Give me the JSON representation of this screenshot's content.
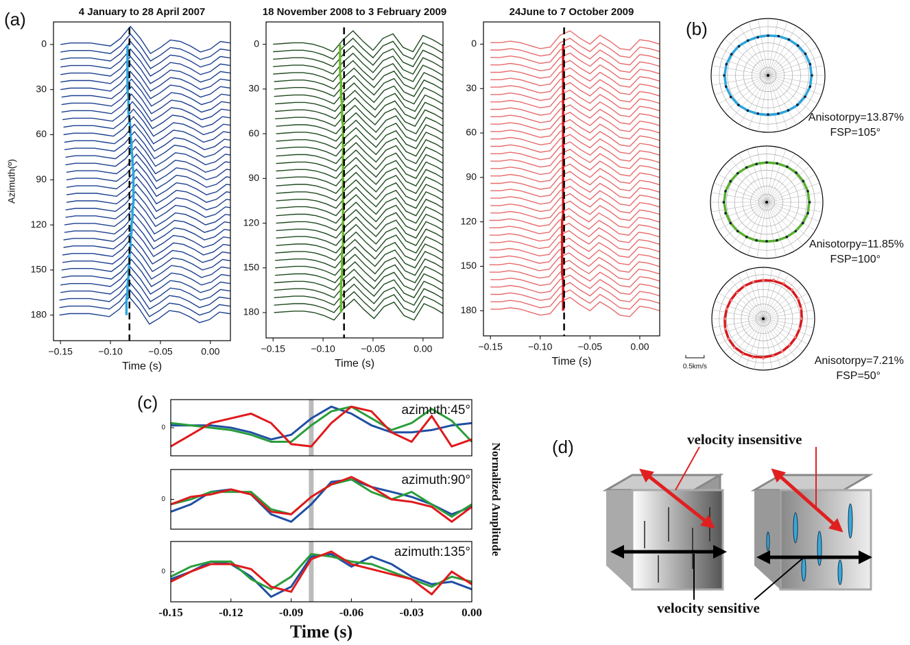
{
  "panel_labels": [
    "(a)",
    "(b)",
    "(c)",
    "(d)"
  ],
  "chart_data": [
    {
      "type": "waveform",
      "title": "4 January to 28 April 2007",
      "xlabel": "Time (s)",
      "ylabel": "Azimuth(º)",
      "color": "#1a3f8f",
      "pick_color": "#2ba6de",
      "xlim": [
        -0.157,
        0.02
      ],
      "ylim": [
        -15,
        197
      ],
      "xticks": [
        {
          "value": -0.15,
          "label": "−0.15"
        },
        {
          "value": -0.1,
          "label": "−0.10"
        },
        {
          "value": -0.05,
          "label": "−0.05"
        },
        {
          "value": 0,
          "label": "0.00"
        }
      ],
      "yticks": [
        0,
        30,
        60,
        90,
        120,
        150,
        180
      ],
      "x": [
        -0.15,
        -0.14,
        -0.13,
        -0.12,
        -0.11,
        -0.1,
        -0.09,
        -0.08,
        -0.07,
        -0.06,
        -0.05,
        -0.04,
        -0.03,
        -0.02,
        -0.01,
        0,
        0.01,
        0.02,
        0.03
      ],
      "values": [
        0,
        1,
        1,
        1,
        0,
        -1,
        4,
        12,
        4,
        -6,
        -2,
        3,
        2,
        -1,
        -5,
        -3,
        2,
        1,
        0
      ],
      "azimuths": [
        0,
        5,
        10,
        15,
        20,
        25,
        30,
        35,
        40,
        45,
        50,
        55,
        60,
        65,
        70,
        75,
        80,
        85,
        90,
        95,
        100,
        105,
        110,
        115,
        120,
        125,
        130,
        135,
        140,
        145,
        150,
        155,
        160,
        165,
        170,
        175,
        180
      ],
      "pick_times": [
        -0.083,
        -0.083,
        -0.083,
        -0.083,
        -0.083,
        -0.083,
        -0.083,
        -0.082,
        -0.082,
        -0.082,
        -0.081,
        -0.08,
        -0.08,
        -0.079,
        -0.079,
        -0.078,
        -0.078,
        -0.077,
        -0.077,
        -0.077,
        -0.077,
        -0.077,
        -0.078,
        -0.078,
        -0.079,
        -0.079,
        -0.08,
        -0.08,
        -0.081,
        -0.081,
        -0.082,
        -0.082,
        -0.083,
        -0.083,
        -0.084,
        -0.084,
        -0.084
      ],
      "reference_time": -0.081
    },
    {
      "type": "waveform",
      "title": "18 November 2008 to 3 February 2009",
      "xlabel": "Time (s)",
      "color": "#1f4a1f",
      "pick_color": "#6ab82d",
      "xlim": [
        -0.157,
        0.02
      ],
      "ylim": [
        -15,
        197
      ],
      "xticks": [
        {
          "value": -0.15,
          "label": "−0.15"
        },
        {
          "value": -0.1,
          "label": "−0.10"
        },
        {
          "value": -0.05,
          "label": "−0.05"
        },
        {
          "value": 0,
          "label": "0.00"
        }
      ],
      "yticks": [
        0,
        30,
        60,
        90,
        120,
        150,
        180
      ],
      "x": [
        -0.15,
        -0.14,
        -0.13,
        -0.12,
        -0.11,
        -0.1,
        -0.09,
        -0.08,
        -0.07,
        -0.06,
        -0.05,
        -0.04,
        -0.03,
        -0.02,
        -0.01,
        0,
        0.01,
        0.02,
        0.03
      ],
      "values": [
        0,
        0.5,
        1,
        1,
        0,
        -2,
        -5,
        3,
        9,
        2,
        -4,
        4,
        7,
        -2,
        -5,
        6,
        3,
        -1,
        0
      ],
      "azimuths": [
        0,
        5,
        10,
        15,
        20,
        25,
        30,
        35,
        40,
        45,
        50,
        55,
        60,
        65,
        70,
        75,
        80,
        85,
        90,
        95,
        100,
        105,
        110,
        115,
        120,
        125,
        130,
        135,
        140,
        145,
        150,
        155,
        160,
        165,
        170,
        175,
        180
      ],
      "pick_times": [
        -0.083,
        -0.083,
        -0.083,
        -0.083,
        -0.083,
        -0.082,
        -0.082,
        -0.082,
        -0.081,
        -0.081,
        -0.081,
        -0.08,
        -0.08,
        -0.08,
        -0.08,
        -0.08,
        -0.08,
        -0.08,
        -0.08,
        -0.08,
        -0.08,
        -0.08,
        -0.08,
        -0.08,
        -0.08,
        -0.08,
        -0.08,
        -0.08,
        -0.081,
        -0.081,
        -0.081,
        -0.081,
        -0.082,
        -0.082,
        -0.082,
        -0.082,
        -0.082
      ],
      "reference_time": -0.079
    },
    {
      "type": "waveform",
      "title": "24June to 7 October 2009",
      "xlabel": "Time (s)",
      "color": "#e86a6a",
      "pick_color": "#d7191c",
      "xlim": [
        -0.157,
        0.02
      ],
      "ylim": [
        -15,
        197
      ],
      "xticks": [
        {
          "value": -0.15,
          "label": "−0.15"
        },
        {
          "value": -0.1,
          "label": "−0.10"
        },
        {
          "value": -0.05,
          "label": "−0.05"
        },
        {
          "value": 0,
          "label": "0.00"
        }
      ],
      "yticks": [
        0,
        30,
        60,
        90,
        120,
        150,
        180
      ],
      "x": [
        -0.15,
        -0.14,
        -0.13,
        -0.12,
        -0.11,
        -0.1,
        -0.09,
        -0.08,
        -0.07,
        -0.06,
        -0.05,
        -0.04,
        -0.03,
        -0.02,
        -0.01,
        0,
        0.01,
        0.02,
        0.03
      ],
      "values": [
        1,
        1,
        2,
        1,
        -1,
        -3,
        -2,
        6,
        9,
        4,
        0,
        6,
        2,
        -3,
        -4,
        3,
        2,
        0,
        1
      ],
      "azimuths": [
        0,
        5,
        10,
        15,
        20,
        25,
        30,
        35,
        40,
        45,
        50,
        55,
        60,
        65,
        70,
        75,
        80,
        85,
        90,
        95,
        100,
        105,
        110,
        115,
        120,
        125,
        130,
        135,
        140,
        145,
        150,
        155,
        160,
        165,
        170,
        175,
        180
      ],
      "pick_times": [
        -0.077,
        -0.077,
        -0.077,
        -0.077,
        -0.077,
        -0.077,
        -0.077,
        -0.077,
        -0.077,
        -0.077,
        -0.077,
        -0.077,
        -0.077,
        -0.077,
        -0.077,
        -0.077,
        -0.077,
        -0.077,
        -0.077,
        -0.077,
        -0.077,
        -0.077,
        -0.077,
        -0.077,
        -0.078,
        -0.078,
        -0.078,
        -0.078,
        -0.078,
        -0.078,
        -0.078,
        -0.078,
        -0.077,
        -0.077,
        -0.077,
        -0.077,
        -0.077
      ],
      "reference_time": -0.076
    },
    {
      "type": "polar",
      "color": "#2ba6de",
      "rlim": [
        0,
        1.4
      ],
      "rticks": [
        0.2,
        0.4,
        0.6,
        0.8,
        1.0,
        1.2,
        1.4
      ],
      "annotation": [
        "Anisotorpy=13.87%",
        "FSP=105°"
      ],
      "angles": [
        0,
        15,
        30,
        45,
        60,
        75,
        90,
        105,
        120,
        135,
        150,
        165,
        180,
        195,
        210,
        225,
        240,
        255,
        270,
        285,
        300,
        315,
        330,
        345
      ],
      "values": [
        0.98,
        1.0,
        1.02,
        1.04,
        1.06,
        1.07,
        1.08,
        1.07,
        1.05,
        1.02,
        0.99,
        0.97,
        0.96,
        0.97,
        1.0,
        1.03,
        1.06,
        1.07,
        1.08,
        1.06,
        1.04,
        1.01,
        0.99,
        0.97
      ],
      "fit": [
        0.98,
        1.0,
        1.02,
        1.04,
        1.06,
        1.07,
        1.07,
        1.07,
        1.05,
        1.03,
        1.0,
        0.98,
        0.97,
        0.98,
        1.0,
        1.03,
        1.05,
        1.07,
        1.07,
        1.06,
        1.04,
        1.02,
        0.99,
        0.98
      ]
    },
    {
      "type": "polar",
      "color": "#5ab030",
      "rlim": [
        0,
        1.4
      ],
      "rticks": [
        0.2,
        0.4,
        0.6,
        0.8,
        1.0,
        1.2,
        1.4
      ],
      "annotation": [
        "Anisotorpy=11.85%",
        "FSP=100°"
      ],
      "angles": [
        0,
        15,
        30,
        45,
        60,
        75,
        90,
        105,
        120,
        135,
        150,
        165,
        180,
        195,
        210,
        225,
        240,
        255,
        270,
        285,
        300,
        315,
        330,
        345
      ],
      "values": [
        0.99,
        1.0,
        1.02,
        1.04,
        1.05,
        1.06,
        1.07,
        1.06,
        1.04,
        1.02,
        1.0,
        0.98,
        0.97,
        0.98,
        1.0,
        1.02,
        1.04,
        1.06,
        1.07,
        1.06,
        1.04,
        1.02,
        1.0,
        0.98
      ],
      "fit": [
        0.99,
        1.0,
        1.02,
        1.04,
        1.05,
        1.06,
        1.06,
        1.06,
        1.04,
        1.02,
        1.0,
        0.99,
        0.98,
        0.99,
        1.0,
        1.02,
        1.04,
        1.05,
        1.06,
        1.06,
        1.04,
        1.02,
        1.0,
        0.99
      ]
    },
    {
      "type": "polar",
      "color": "#d7191c",
      "rlim": [
        0,
        1.4
      ],
      "rticks": [
        0.2,
        0.4,
        0.6,
        0.8,
        1.0,
        1.2,
        1.4
      ],
      "annotation": [
        "Anisotorpy=7.21%",
        "FSP=50°"
      ],
      "scale_bar": {
        "value": 0.5,
        "label": "0.5km/s"
      },
      "angles": [
        0,
        15,
        30,
        45,
        60,
        75,
        90,
        105,
        120,
        135,
        150,
        165,
        180,
        195,
        210,
        225,
        240,
        255,
        270,
        285,
        300,
        315,
        330,
        345
      ],
      "values": [
        1.06,
        1.1,
        1.12,
        1.12,
        1.1,
        1.07,
        1.04,
        1.02,
        1.0,
        1.0,
        1.03,
        1.05,
        1.08,
        1.1,
        1.12,
        1.12,
        1.1,
        1.07,
        1.04,
        1.02,
        1.0,
        1.0,
        1.02,
        1.04
      ],
      "fit": [
        1.05,
        1.07,
        1.09,
        1.1,
        1.09,
        1.07,
        1.05,
        1.03,
        1.02,
        1.02,
        1.03,
        1.04,
        1.05,
        1.07,
        1.09,
        1.1,
        1.09,
        1.07,
        1.05,
        1.03,
        1.02,
        1.02,
        1.03,
        1.04
      ]
    },
    {
      "type": "line",
      "annotation": "azimuth:45°",
      "ylim": [
        -1.2,
        1.2
      ],
      "yticks": [
        0
      ],
      "xlim": [
        -0.15,
        0
      ],
      "marker_x": -0.08,
      "x": [
        -0.15,
        -0.14,
        -0.13,
        -0.12,
        -0.11,
        -0.1,
        -0.09,
        -0.08,
        -0.07,
        -0.06,
        -0.05,
        -0.04,
        -0.03,
        -0.02,
        -0.01,
        0
      ],
      "series": [
        {
          "color": "#1f4fa3",
          "values": [
            0.1,
            0.1,
            0.1,
            0,
            -0.2,
            -0.5,
            -0.3,
            0.4,
            0.9,
            0.6,
            0.1,
            -0.2,
            -0.2,
            -0.1,
            0.1,
            0.2
          ]
        },
        {
          "color": "#2a9d3a",
          "values": [
            0.2,
            0.1,
            0,
            -0.1,
            -0.3,
            -0.6,
            -0.6,
            0.1,
            0.7,
            0.9,
            0.4,
            -0.1,
            0.2,
            0.8,
            0.3,
            -0.6
          ]
        },
        {
          "color": "#e0191c",
          "values": [
            -0.8,
            -0.3,
            0.2,
            0.4,
            0.6,
            0.2,
            -0.7,
            -0.8,
            0.2,
            0.9,
            0.7,
            -0.2,
            -0.6,
            0.5,
            -0.8,
            -0.5
          ]
        }
      ]
    },
    {
      "type": "line",
      "annotation": "azimuth:90°",
      "ylabel": "Normalized Amplitude",
      "ylim": [
        -1.2,
        1.2
      ],
      "yticks": [
        0
      ],
      "xlim": [
        -0.15,
        0
      ],
      "marker_x": -0.08,
      "x": [
        -0.15,
        -0.14,
        -0.13,
        -0.12,
        -0.11,
        -0.1,
        -0.09,
        -0.08,
        -0.07,
        -0.06,
        -0.05,
        -0.04,
        -0.03,
        -0.02,
        -0.01,
        0
      ],
      "series": [
        {
          "color": "#1f4fa3",
          "values": [
            -0.5,
            -0.2,
            0.3,
            0.4,
            0.2,
            -0.6,
            -0.9,
            -0.2,
            0.7,
            0.8,
            0.5,
            0.3,
            0.1,
            -0.2,
            -0.6,
            -0.3
          ]
        },
        {
          "color": "#2a9d3a",
          "values": [
            -0.2,
            0,
            0.3,
            0.3,
            0.3,
            -0.4,
            -0.6,
            0.1,
            0.6,
            0.8,
            0.3,
            0,
            0.3,
            -0.2,
            -0.7,
            -0.2
          ]
        },
        {
          "color": "#e0191c",
          "values": [
            -0.2,
            0.1,
            0.2,
            0.4,
            0.2,
            -0.5,
            -0.6,
            0.1,
            0.6,
            0.9,
            0.5,
            0,
            -0.1,
            -0.3,
            -0.9,
            -0.3
          ]
        }
      ]
    },
    {
      "type": "line",
      "annotation": "azimuth:135°",
      "xlabel": "Time (s)",
      "ylim": [
        -1.2,
        1.2
      ],
      "yticks": [
        0
      ],
      "xlim": [
        -0.15,
        0
      ],
      "marker_x": -0.08,
      "xticks": [
        -0.15,
        -0.12,
        -0.09,
        -0.06,
        -0.03,
        {
          "value": 0,
          "label": "0.00"
        }
      ],
      "x": [
        -0.15,
        -0.14,
        -0.13,
        -0.12,
        -0.11,
        -0.1,
        -0.09,
        -0.08,
        -0.07,
        -0.06,
        -0.05,
        -0.04,
        -0.03,
        -0.02,
        -0.01,
        0
      ],
      "series": [
        {
          "color": "#1f4fa3",
          "values": [
            -0.3,
            0,
            0.4,
            0.3,
            -0.2,
            -1,
            -0.6,
            0.6,
            0.7,
            0.2,
            0.6,
            0.3,
            -0.2,
            -0.5,
            -0.4,
            -0.7
          ]
        },
        {
          "color": "#2a9d3a",
          "values": [
            -0.2,
            0.2,
            0.4,
            0.4,
            -0.3,
            -0.7,
            -0.2,
            0.7,
            0.6,
            0.4,
            0.3,
            0,
            -0.3,
            -0.6,
            -0.2,
            -0.4
          ]
        },
        {
          "color": "#e0191c",
          "values": [
            -0.4,
            0,
            0.3,
            0.3,
            0.1,
            -0.6,
            -0.8,
            0.5,
            0.8,
            0.3,
            0.1,
            -0.1,
            -0.3,
            -0.9,
            0,
            -0.5
          ]
        }
      ]
    }
  ],
  "diagram": {
    "label_top": "velocity insensitive",
    "label_bottom": "velocity sensitive"
  }
}
